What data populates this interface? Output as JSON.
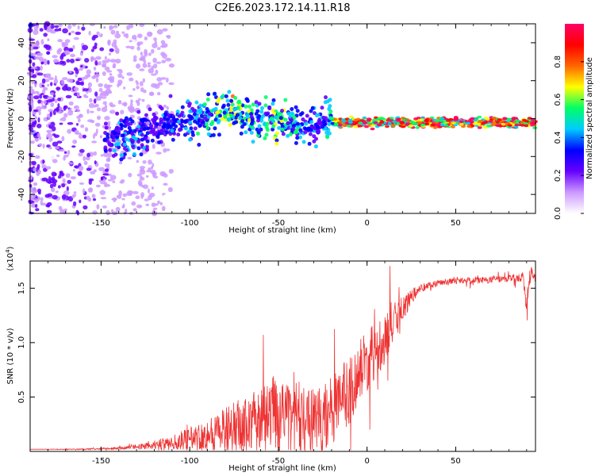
{
  "title": "C2E6.2023.172.14.11.R18",
  "chart_data": [
    {
      "type": "heatmap",
      "xlabel": "Height of straight line (km)",
      "ylabel": "Frequency (Hz)",
      "xlim": [
        -190,
        95
      ],
      "ylim": [
        -50,
        50
      ],
      "xticks": [
        "-150",
        "-100",
        "-50",
        "0",
        "50"
      ],
      "yticks": [
        "-40",
        "-20",
        "0",
        "20",
        "40"
      ],
      "grid": false,
      "colorbar": {
        "label": "Normalized spectral amplitude",
        "range": [
          0,
          1
        ],
        "ticks": [
          "0.0",
          "0.2",
          "0.4",
          "0.6",
          "0.8"
        ],
        "colors": [
          "#ffffff",
          "#cc99ff",
          "#6600ff",
          "#0000ff",
          "#00ccff",
          "#00ff66",
          "#ffff00",
          "#ff6600",
          "#ff0000",
          "#ff0066"
        ]
      },
      "ridge": {
        "x": [
          -145,
          -140,
          -130,
          -120,
          -110,
          -100,
          -90,
          -80,
          -75,
          -70,
          -60,
          -50,
          -45,
          -40,
          -35,
          -30,
          -25,
          -20,
          -18,
          -10,
          0,
          10,
          20,
          40,
          60,
          80,
          95
        ],
        "y": [
          -12,
          -10,
          -8,
          -4,
          -2,
          -1,
          1,
          4,
          3,
          2,
          1,
          -1,
          -2,
          -4,
          -5,
          -4,
          -3,
          0,
          -2,
          -2,
          -2,
          -2,
          -2,
          -2,
          -2,
          -2,
          -2
        ],
        "amplitude": [
          0.3,
          0.4,
          0.4,
          0.3,
          0.4,
          0.4,
          0.5,
          0.6,
          0.7,
          0.6,
          0.5,
          0.6,
          0.5,
          0.5,
          0.4,
          0.4,
          0.4,
          0.5,
          0.9,
          0.9,
          0.95,
          0.9,
          0.95,
          0.95,
          0.95,
          0.95,
          0.95
        ]
      }
    },
    {
      "type": "line",
      "xlabel": "Height of straight line (km)",
      "ylabel": "SNR (10 * v/v)",
      "multiplier": "(x10",
      "multiplier_exp": "4",
      "xlim": [
        -190,
        95
      ],
      "ylim": [
        0,
        1.75
      ],
      "xticks": [
        "-150",
        "-100",
        "-50",
        "0",
        "50"
      ],
      "yticks": [
        "0.5",
        "1.0",
        "1.5"
      ],
      "grid": false,
      "color": "#ee3333",
      "envelope": {
        "x": [
          -190,
          -160,
          -140,
          -130,
          -120,
          -110,
          -100,
          -90,
          -80,
          -70,
          -60,
          -55,
          -50,
          -45,
          -40,
          -35,
          -30,
          -25,
          -20,
          -15,
          -10,
          -5,
          0,
          5,
          10,
          15,
          20,
          25,
          30,
          40,
          50,
          60,
          70,
          80,
          88,
          90,
          92,
          95
        ],
        "y": [
          0.02,
          0.02,
          0.03,
          0.04,
          0.06,
          0.08,
          0.12,
          0.15,
          0.2,
          0.25,
          0.3,
          0.32,
          0.4,
          0.3,
          0.33,
          0.3,
          0.28,
          0.3,
          0.38,
          0.45,
          0.55,
          0.7,
          0.85,
          0.95,
          1.05,
          1.18,
          1.3,
          1.42,
          1.5,
          1.55,
          1.57,
          1.57,
          1.58,
          1.59,
          1.6,
          1.35,
          1.62,
          1.6
        ],
        "noise": [
          0.0,
          0.005,
          0.01,
          0.02,
          0.04,
          0.07,
          0.1,
          0.16,
          0.2,
          0.25,
          0.3,
          0.3,
          0.45,
          0.3,
          0.35,
          0.3,
          0.3,
          0.3,
          0.35,
          0.35,
          0.3,
          0.3,
          0.3,
          0.28,
          0.25,
          0.22,
          0.12,
          0.07,
          0.04,
          0.03,
          0.025,
          0.03,
          0.03,
          0.03,
          0.05,
          0.1,
          0.1,
          0.08
        ]
      }
    }
  ]
}
